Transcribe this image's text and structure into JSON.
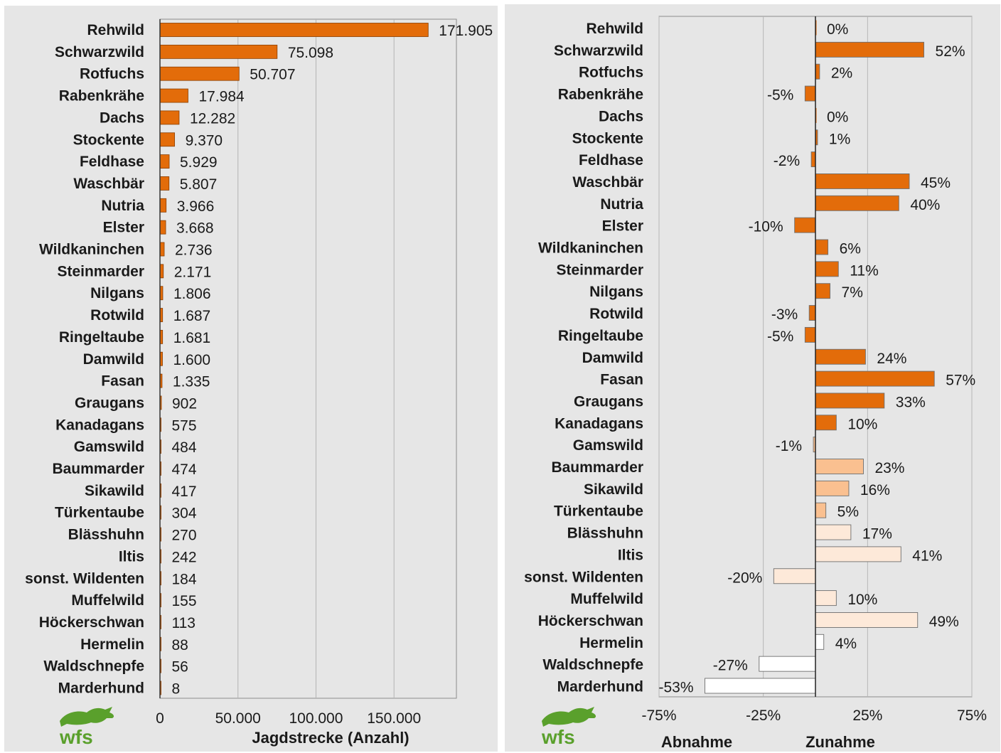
{
  "chart_data": [
    {
      "type": "bar",
      "orientation": "horizontal",
      "categories": [
        "Rehwild",
        "Schwarzwild",
        "Rotfuchs",
        "Rabenkrähe",
        "Dachs",
        "Stockente",
        "Feldhase",
        "Waschbär",
        "Nutria",
        "Elster",
        "Wildkaninchen",
        "Steinmarder",
        "Nilgans",
        "Rotwild",
        "Ringeltaube",
        "Damwild",
        "Fasan",
        "Graugans",
        "Kanadagans",
        "Gamswild",
        "Baummarder",
        "Sikawild",
        "Türkentaube",
        "Blässhuhn",
        "Iltis",
        "sonst. Wildenten",
        "Muffelwild",
        "Höckerschwan",
        "Hermelin",
        "Waldschnepfe",
        "Marderhund"
      ],
      "values": [
        171905,
        75098,
        50707,
        17984,
        12282,
        9370,
        5929,
        5807,
        3966,
        3668,
        2736,
        2171,
        1806,
        1687,
        1681,
        1600,
        1335,
        902,
        575,
        484,
        474,
        417,
        304,
        270,
        242,
        184,
        155,
        113,
        88,
        56,
        8
      ],
      "value_labels": [
        "171.905",
        "75.098",
        "50.707",
        "17.984",
        "12.282",
        "9.370",
        "5.929",
        "5.807",
        "3.966",
        "3.668",
        "2.736",
        "2.171",
        "1.806",
        "1.687",
        "1.681",
        "1.600",
        "1.335",
        "902",
        "575",
        "484",
        "474",
        "417",
        "304",
        "270",
        "242",
        "184",
        "155",
        "113",
        "88",
        "56",
        "8"
      ],
      "xlim": [
        0,
        190000
      ],
      "xticks": [
        0,
        50000,
        100000,
        150000
      ],
      "xtick_labels": [
        "0",
        "50.000",
        "100.000",
        "150.000"
      ],
      "xlabel": "Jagdstrecke  (Anzahl)",
      "grid": "vertical",
      "bar_color": "#e36c0a"
    },
    {
      "type": "bar",
      "orientation": "horizontal",
      "categories": [
        "Rehwild",
        "Schwarzwild",
        "Rotfuchs",
        "Rabenkrähe",
        "Dachs",
        "Stockente",
        "Feldhase",
        "Waschbär",
        "Nutria",
        "Elster",
        "Wildkaninchen",
        "Steinmarder",
        "Nilgans",
        "Rotwild",
        "Ringeltaube",
        "Damwild",
        "Fasan",
        "Graugans",
        "Kanadagans",
        "Gamswild",
        "Baummarder",
        "Sikawild",
        "Türkentaube",
        "Blässhuhn",
        "Iltis",
        "sonst. Wildenten",
        "Muffelwild",
        "Höckerschwan",
        "Hermelin",
        "Waldschnepfe",
        "Marderhund"
      ],
      "values": [
        0,
        52,
        2,
        -5,
        0,
        1,
        -2,
        45,
        40,
        -10,
        6,
        11,
        7,
        -3,
        -5,
        24,
        57,
        33,
        10,
        -1,
        23,
        16,
        5,
        17,
        41,
        -20,
        10,
        49,
        4,
        -27,
        -53
      ],
      "value_labels": [
        "0%",
        "52%",
        "2%",
        "-5%",
        "0%",
        "1%",
        "-2%",
        "45%",
        "40%",
        "-10%",
        "6%",
        "11%",
        "7%",
        "-3%",
        "-5%",
        "24%",
        "57%",
        "33%",
        "10%",
        "-1%",
        "23%",
        "16%",
        "5%",
        "17%",
        "41%",
        "-20%",
        "10%",
        "49%",
        "4%",
        "-27%",
        "-53%"
      ],
      "bar_colors": [
        "#e36c0a",
        "#e36c0a",
        "#e36c0a",
        "#e36c0a",
        "#e36c0a",
        "#e36c0a",
        "#e36c0a",
        "#e36c0a",
        "#e36c0a",
        "#e36c0a",
        "#e36c0a",
        "#e36c0a",
        "#e36c0a",
        "#e36c0a",
        "#e36c0a",
        "#e36c0a",
        "#e36c0a",
        "#e36c0a",
        "#e36c0a",
        "#fac090",
        "#fac090",
        "#fac090",
        "#fac090",
        "#fde9d9",
        "#fde9d9",
        "#fde9d9",
        "#fde9d9",
        "#fde9d9",
        "#ffffff",
        "#ffffff",
        "#ffffff"
      ],
      "xlim": [
        -75,
        75
      ],
      "xticks": [
        -75,
        -25,
        25,
        75
      ],
      "xtick_labels": [
        "-75%",
        "-25%",
        "25%",
        "75%"
      ],
      "axis_labels": {
        "negative": "Abnahme",
        "positive": "Zunahme"
      },
      "grid": "vertical"
    }
  ],
  "logo": {
    "text": "wfs",
    "color": "#5aa02c"
  }
}
